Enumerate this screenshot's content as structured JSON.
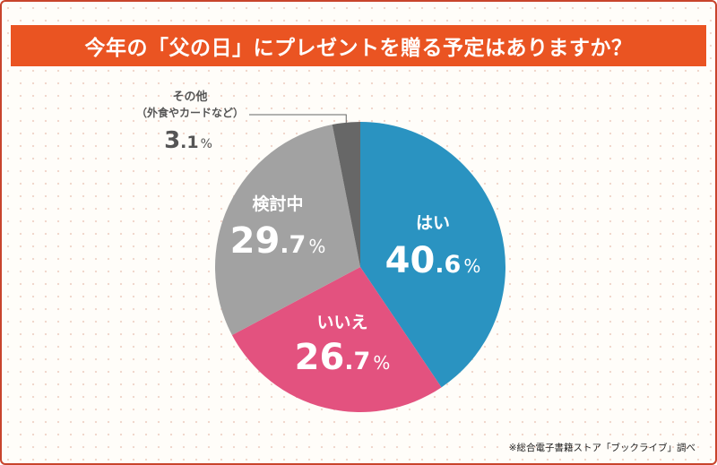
{
  "header": {
    "title": "今年の「父の日」にプレゼントを贈る予定はありますか？"
  },
  "chart_data": {
    "type": "pie",
    "title": "今年の「父の日」にプレゼントを贈る予定はありますか？",
    "slices": [
      {
        "label": "はい",
        "value": 40.6,
        "color": "#2a93c1",
        "label_color": "#ffffff"
      },
      {
        "label": "いいえ",
        "value": 26.7,
        "color": "#e3527f",
        "label_color": "#ffffff"
      },
      {
        "label": "検討中",
        "value": 29.7,
        "color": "#a2a2a2",
        "label_color": "#ffffff"
      },
      {
        "label": "その他",
        "sublabel": "（外食やカードなど）",
        "value": 3.1,
        "color": "#676767",
        "label_color": "#555555"
      }
    ],
    "start": "12 o'clock",
    "direction": "clockwise",
    "unit": "%"
  },
  "footer": {
    "source": "※総合電子書籍ストア「ブックライブ」調べ"
  }
}
